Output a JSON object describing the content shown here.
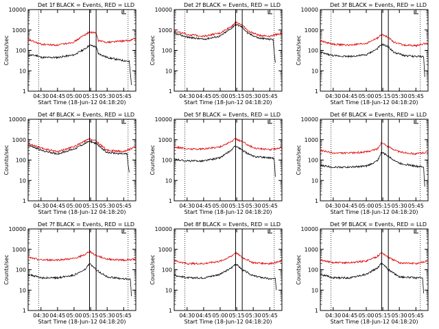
{
  "colors": {
    "events": "#000000",
    "lld": "#e00000",
    "axes": "#000000",
    "markers": "#000000"
  },
  "chart_data": [
    {
      "type": "line",
      "title": "Det 1f BLACK = Events, RED = LLD",
      "xlabel": "Start Time (18-Jun-12 04:18:20)",
      "ylabel": "Counts/sec",
      "xlim": [
        "04:18:20",
        "03:56:00"
      ],
      "ylim": [
        1,
        10000
      ],
      "ylog": true,
      "xticks": [
        "04:30",
        "04:45",
        "05:00",
        "05:15",
        "05:30",
        "05:45"
      ],
      "yticks": [
        "1",
        "10",
        "100",
        "1000",
        "10000"
      ],
      "vlines_dotted": [
        "04:28",
        "05:49"
      ],
      "vlines_solid": [
        "05:14",
        "05:20"
      ],
      "series": [
        {
          "color": "#000000",
          "x": [
            "04:18",
            "04:27",
            "04:30",
            "04:45",
            "05:00",
            "05:10",
            "05:14",
            "05:20",
            "05:22",
            "05:30",
            "05:40",
            "05:48",
            "05:50",
            "05:51",
            "05:52"
          ],
          "y": [
            60,
            55,
            45,
            45,
            60,
            120,
            180,
            150,
            70,
            45,
            35,
            30,
            28,
            8,
            2
          ]
        },
        {
          "color": "#e00000",
          "x": [
            "04:18",
            "04:25",
            "04:30",
            "04:45",
            "05:00",
            "05:10",
            "05:14",
            "05:20",
            "05:22",
            "05:30",
            "05:40",
            "05:50",
            "05:56"
          ],
          "y": [
            350,
            250,
            200,
            180,
            260,
            600,
            800,
            700,
            300,
            250,
            280,
            300,
            400
          ]
        }
      ]
    },
    {
      "type": "line",
      "title": "Det 2f BLACK = Events, RED = LLD",
      "xlabel": "Start Time (18-Jun-12 04:18:20)",
      "ylabel": "Counts/sec",
      "xlim": [
        "04:18:20",
        "03:56:00"
      ],
      "ylim": [
        1,
        10000
      ],
      "ylog": true,
      "xticks": [
        "04:30",
        "04:45",
        "05:00",
        "05:15",
        "05:30",
        "05:45"
      ],
      "yticks": [
        "1",
        "10",
        "100",
        "1000",
        "10000"
      ],
      "vlines_dotted": [
        "04:28",
        "05:49"
      ],
      "vlines_solid": [
        "05:14",
        "05:20"
      ],
      "series": [
        {
          "color": "#000000",
          "x": [
            "04:18",
            "04:30",
            "04:45",
            "05:00",
            "05:10",
            "05:14",
            "05:20",
            "05:25",
            "05:35",
            "05:45",
            "05:48",
            "05:49",
            "05:50"
          ],
          "y": [
            700,
            450,
            350,
            500,
            1200,
            1900,
            1400,
            700,
            400,
            350,
            350,
            80,
            25
          ]
        },
        {
          "color": "#e00000",
          "x": [
            "04:18",
            "04:30",
            "04:45",
            "05:00",
            "05:10",
            "05:14",
            "05:20",
            "05:25",
            "05:35",
            "05:45",
            "05:56"
          ],
          "y": [
            900,
            600,
            500,
            700,
            1500,
            2400,
            1800,
            900,
            550,
            500,
            700
          ]
        }
      ]
    },
    {
      "type": "line",
      "title": "Det 3f BLACK = Events, RED = LLD",
      "xlabel": "Start Time (18-Jun-12 04:18:20)",
      "ylabel": "Counts/sec",
      "xlim": [
        "04:18:20",
        "03:56:00"
      ],
      "ylim": [
        1,
        10000
      ],
      "ylog": true,
      "xticks": [
        "04:30",
        "04:45",
        "05:00",
        "05:15",
        "05:30",
        "05:45"
      ],
      "yticks": [
        "1",
        "10",
        "100",
        "1000",
        "10000"
      ],
      "vlines_dotted": [
        "04:28",
        "05:49"
      ],
      "vlines_solid": [
        "05:14",
        "05:20"
      ],
      "series": [
        {
          "color": "#000000",
          "x": [
            "04:18",
            "04:30",
            "04:45",
            "05:00",
            "05:10",
            "05:14",
            "05:20",
            "05:25",
            "05:35",
            "05:45",
            "05:52",
            "05:53"
          ],
          "y": [
            80,
            55,
            50,
            60,
            120,
            200,
            150,
            80,
            55,
            50,
            50,
            5
          ]
        },
        {
          "color": "#e00000",
          "x": [
            "04:18",
            "04:30",
            "04:45",
            "05:00",
            "05:10",
            "05:14",
            "05:20",
            "05:25",
            "05:35",
            "05:45",
            "05:56"
          ],
          "y": [
            300,
            200,
            180,
            220,
            400,
            600,
            450,
            250,
            180,
            170,
            230
          ]
        }
      ]
    },
    {
      "type": "line",
      "title": "Det 4f BLACK = Events, RED = LLD",
      "xlabel": "Start Time (18-Jun-12 04:18:20)",
      "ylabel": "Counts/sec",
      "xlim": [
        "04:18:20",
        "03:56:00"
      ],
      "ylim": [
        1,
        10000
      ],
      "ylog": true,
      "xticks": [
        "04:30",
        "04:45",
        "05:00",
        "05:15",
        "05:30",
        "05:45"
      ],
      "yticks": [
        "1",
        "10",
        "100",
        "1000",
        "10000"
      ],
      "vlines_dotted": [
        "04:28",
        "05:49"
      ],
      "vlines_solid": [
        "05:14",
        "05:20"
      ],
      "series": [
        {
          "color": "#000000",
          "x": [
            "04:18",
            "04:30",
            "04:45",
            "05:00",
            "05:10",
            "05:14",
            "05:20",
            "05:30",
            "05:45",
            "05:48",
            "05:49",
            "05:50"
          ],
          "y": [
            550,
            300,
            200,
            350,
            650,
            850,
            650,
            230,
            200,
            200,
            60,
            25
          ]
        },
        {
          "color": "#e00000",
          "x": [
            "04:18",
            "04:30",
            "04:45",
            "05:00",
            "05:10",
            "05:14",
            "05:20",
            "05:30",
            "05:45",
            "05:56"
          ],
          "y": [
            650,
            380,
            260,
            450,
            850,
            1100,
            850,
            300,
            260,
            450
          ]
        }
      ]
    },
    {
      "type": "line",
      "title": "Det 5f BLACK = Events, RED = LLD",
      "xlabel": "Start Time (18-Jun-12 04:18:20)",
      "ylabel": "Counts/sec",
      "xlim": [
        "04:18:20",
        "03:56:00"
      ],
      "ylim": [
        1,
        10000
      ],
      "ylog": true,
      "xticks": [
        "04:30",
        "04:45",
        "05:00",
        "05:15",
        "05:30",
        "05:45"
      ],
      "yticks": [
        "1",
        "10",
        "100",
        "1000",
        "10000"
      ],
      "vlines_dotted": [
        "04:28",
        "05:49"
      ],
      "vlines_solid": [
        "05:14",
        "05:20"
      ],
      "series": [
        {
          "color": "#000000",
          "x": [
            "04:18",
            "04:30",
            "04:45",
            "05:00",
            "05:10",
            "05:14",
            "05:20",
            "05:30",
            "05:45",
            "05:49",
            "05:50"
          ],
          "y": [
            110,
            90,
            90,
            130,
            300,
            500,
            300,
            150,
            130,
            120,
            15
          ]
        },
        {
          "color": "#e00000",
          "x": [
            "04:18",
            "04:30",
            "04:45",
            "05:00",
            "05:10",
            "05:14",
            "05:20",
            "05:30",
            "05:45",
            "05:56"
          ],
          "y": [
            450,
            350,
            350,
            450,
            800,
            1100,
            800,
            400,
            320,
            420
          ]
        }
      ]
    },
    {
      "type": "line",
      "title": "Det 6f BLACK = Events, RED = LLD",
      "xlabel": "Start Time (18-Jun-12 04:18:20)",
      "ylabel": "Counts/sec",
      "xlim": [
        "04:18:20",
        "03:56:00"
      ],
      "ylim": [
        1,
        10000
      ],
      "ylog": true,
      "xticks": [
        "04:30",
        "04:45",
        "05:00",
        "05:15",
        "05:30",
        "05:45"
      ],
      "yticks": [
        "1",
        "10",
        "100",
        "1000",
        "10000"
      ],
      "vlines_dotted": [
        "04:28",
        "05:49"
      ],
      "vlines_solid": [
        "05:14",
        "05:20"
      ],
      "series": [
        {
          "color": "#000000",
          "x": [
            "04:18",
            "04:30",
            "04:45",
            "05:00",
            "05:10",
            "05:14",
            "05:20",
            "05:30",
            "05:45",
            "05:52",
            "05:53"
          ],
          "y": [
            55,
            45,
            45,
            50,
            90,
            250,
            150,
            70,
            50,
            45,
            5
          ]
        },
        {
          "color": "#e00000",
          "x": [
            "04:18",
            "04:30",
            "04:45",
            "05:00",
            "05:10",
            "05:14",
            "05:20",
            "05:30",
            "05:45",
            "05:56"
          ],
          "y": [
            300,
            220,
            220,
            250,
            350,
            700,
            450,
            250,
            200,
            250
          ]
        }
      ]
    },
    {
      "type": "line",
      "title": "Det 7f BLACK = Events, RED = LLD",
      "xlabel": "Start Time (18-Jun-12 04:18:20)",
      "ylabel": "Counts/sec",
      "xlim": [
        "04:18:20",
        "03:56:00"
      ],
      "ylim": [
        1,
        10000
      ],
      "ylog": true,
      "xticks": [
        "04:30",
        "04:45",
        "05:00",
        "05:15",
        "05:30",
        "05:45"
      ],
      "yticks": [
        "1",
        "10",
        "100",
        "1000",
        "10000"
      ],
      "vlines_dotted": [
        "04:28",
        "05:49"
      ],
      "vlines_solid": [
        "05:14",
        "05:20"
      ],
      "series": [
        {
          "color": "#000000",
          "x": [
            "04:18",
            "04:30",
            "04:45",
            "05:00",
            "05:10",
            "05:14",
            "05:20",
            "05:30",
            "05:45",
            "05:51",
            "05:52"
          ],
          "y": [
            60,
            40,
            40,
            55,
            100,
            200,
            100,
            45,
            35,
            35,
            5
          ]
        },
        {
          "color": "#e00000",
          "x": [
            "04:18",
            "04:30",
            "04:45",
            "05:00",
            "05:10",
            "05:14",
            "05:20",
            "05:30",
            "05:45",
            "05:56"
          ],
          "y": [
            400,
            300,
            300,
            350,
            550,
            800,
            500,
            330,
            300,
            330
          ]
        }
      ]
    },
    {
      "type": "line",
      "title": "Det 8f BLACK = Events, RED = LLD",
      "xlabel": "Start Time (18-Jun-12 04:18:20)",
      "ylabel": "Counts/sec",
      "xlim": [
        "04:18:20",
        "03:56:00"
      ],
      "ylim": [
        1,
        10000
      ],
      "ylog": true,
      "xticks": [
        "04:30",
        "04:45",
        "05:00",
        "05:15",
        "05:30",
        "05:45"
      ],
      "yticks": [
        "1",
        "10",
        "100",
        "1000",
        "10000"
      ],
      "vlines_dotted": [
        "04:28",
        "05:49"
      ],
      "vlines_solid": [
        "05:14",
        "05:20"
      ],
      "series": [
        {
          "color": "#000000",
          "x": [
            "04:18",
            "04:30",
            "04:45",
            "05:00",
            "05:10",
            "05:14",
            "05:20",
            "05:30",
            "05:45",
            "05:50",
            "05:51"
          ],
          "y": [
            55,
            40,
            40,
            60,
            120,
            200,
            100,
            50,
            35,
            35,
            10
          ]
        },
        {
          "color": "#e00000",
          "x": [
            "04:18",
            "04:30",
            "04:45",
            "05:00",
            "05:10",
            "05:14",
            "05:20",
            "05:30",
            "05:45",
            "05:56"
          ],
          "y": [
            280,
            200,
            200,
            260,
            450,
            700,
            400,
            220,
            200,
            260
          ]
        }
      ]
    },
    {
      "type": "line",
      "title": "Det 9f BLACK = Events, RED = LLD",
      "xlabel": "Start Time (18-Jun-12 04:18:20)",
      "ylabel": "Counts/sec",
      "xlim": [
        "04:18:20",
        "03:56:00"
      ],
      "ylim": [
        1,
        10000
      ],
      "ylog": true,
      "xticks": [
        "04:30",
        "04:45",
        "05:00",
        "05:15",
        "05:30",
        "05:45"
      ],
      "yticks": [
        "1",
        "10",
        "100",
        "1000",
        "10000"
      ],
      "vlines_dotted": [
        "04:28",
        "05:49"
      ],
      "vlines_solid": [
        "05:14",
        "05:20"
      ],
      "series": [
        {
          "color": "#000000",
          "x": [
            "04:18",
            "04:30",
            "04:45",
            "05:00",
            "05:10",
            "05:14",
            "05:20",
            "05:30",
            "05:45",
            "05:51",
            "05:52"
          ],
          "y": [
            60,
            40,
            40,
            60,
            120,
            220,
            100,
            45,
            40,
            40,
            7
          ]
        },
        {
          "color": "#e00000",
          "x": [
            "04:18",
            "04:30",
            "04:45",
            "05:00",
            "05:10",
            "05:14",
            "05:20",
            "05:30",
            "05:45",
            "05:56"
          ],
          "y": [
            300,
            220,
            220,
            270,
            450,
            700,
            400,
            220,
            200,
            270
          ]
        }
      ]
    }
  ]
}
